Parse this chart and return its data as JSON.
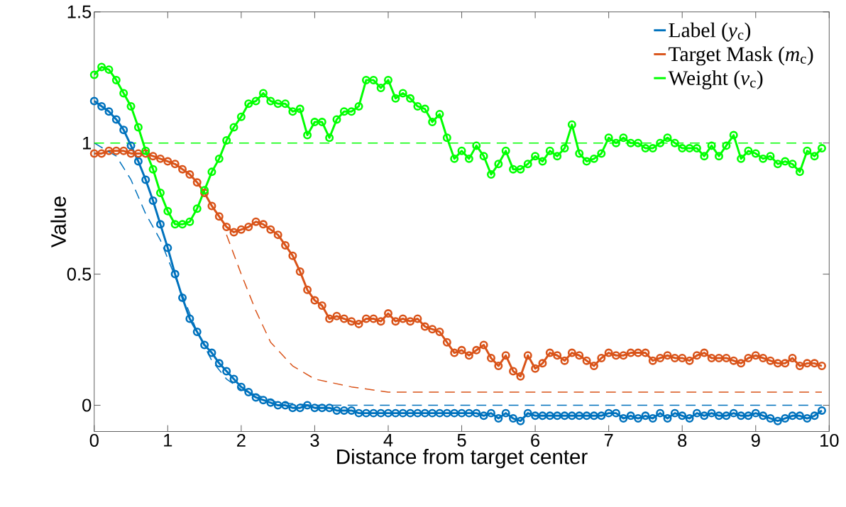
{
  "chart_data": {
    "type": "line",
    "xlabel": "Distance from target center",
    "ylabel": "Value",
    "x": [
      0,
      0.1,
      0.2,
      0.3,
      0.4,
      0.5,
      0.6,
      0.7,
      0.8,
      0.9,
      1,
      1.1,
      1.2,
      1.3,
      1.4,
      1.5,
      1.6,
      1.7,
      1.8,
      1.9,
      2,
      2.1,
      2.2,
      2.3,
      2.4,
      2.5,
      2.6,
      2.7,
      2.8,
      2.9,
      3,
      3.1,
      3.2,
      3.3,
      3.4,
      3.5,
      3.6,
      3.7,
      3.8,
      3.9,
      4,
      4.1,
      4.2,
      4.3,
      4.4,
      4.5,
      4.6,
      4.7,
      4.8,
      4.9,
      5,
      5.1,
      5.2,
      5.3,
      5.4,
      5.5,
      5.6,
      5.7,
      5.8,
      5.9,
      6,
      6.1,
      6.2,
      6.3,
      6.4,
      6.5,
      6.6,
      6.7,
      6.8,
      6.9,
      7,
      7.1,
      7.2,
      7.3,
      7.4,
      7.5,
      7.6,
      7.7,
      7.8,
      7.9,
      8,
      8.1,
      8.2,
      8.3,
      8.4,
      8.5,
      8.6,
      8.7,
      8.8,
      8.9,
      9,
      9.1,
      9.2,
      9.3,
      9.4,
      9.5,
      9.6,
      9.7,
      9.8,
      9.9
    ],
    "xlim": [
      0,
      10
    ],
    "ylim": [
      -0.1,
      1.5
    ],
    "xticks": [
      0,
      1,
      2,
      3,
      4,
      5,
      6,
      7,
      8,
      9,
      10
    ],
    "yticks": [
      0,
      0.5,
      1,
      1.5
    ],
    "legend": "top right",
    "marker": "circle",
    "line_style": "solid",
    "series": [
      {
        "name": "Label (*y*$_{c}$)",
        "color": "#0072bd",
        "values": [
          1.16,
          1.14,
          1.12,
          1.09,
          1.05,
          0.99,
          0.93,
          0.86,
          0.78,
          0.69,
          0.6,
          0.5,
          0.41,
          0.33,
          0.28,
          0.23,
          0.2,
          0.16,
          0.13,
          0.1,
          0.07,
          0.05,
          0.03,
          0.02,
          0.01,
          0.0,
          0.0,
          -0.01,
          -0.01,
          0.0,
          -0.01,
          -0.01,
          -0.01,
          -0.02,
          -0.02,
          -0.02,
          -0.03,
          -0.03,
          -0.03,
          -0.03,
          -0.03,
          -0.03,
          -0.03,
          -0.03,
          -0.03,
          -0.03,
          -0.03,
          -0.03,
          -0.03,
          -0.03,
          -0.03,
          -0.03,
          -0.03,
          -0.04,
          -0.03,
          -0.05,
          -0.03,
          -0.05,
          -0.06,
          -0.03,
          -0.04,
          -0.04,
          -0.04,
          -0.04,
          -0.04,
          -0.04,
          -0.04,
          -0.04,
          -0.04,
          -0.04,
          -0.03,
          -0.03,
          -0.05,
          -0.04,
          -0.05,
          -0.04,
          -0.05,
          -0.03,
          -0.05,
          -0.03,
          -0.04,
          -0.05,
          -0.03,
          -0.04,
          -0.03,
          -0.04,
          -0.04,
          -0.03,
          -0.04,
          -0.04,
          -0.03,
          -0.04,
          -0.05,
          -0.06,
          -0.05,
          -0.04,
          -0.04,
          -0.05,
          -0.04,
          -0.02
        ]
      },
      {
        "name": "Target Mask (*m*$_{c}$)",
        "color": "#d95319",
        "values": [
          0.96,
          0.96,
          0.97,
          0.97,
          0.97,
          0.96,
          0.96,
          0.96,
          0.95,
          0.94,
          0.93,
          0.92,
          0.9,
          0.88,
          0.85,
          0.81,
          0.76,
          0.72,
          0.68,
          0.66,
          0.67,
          0.68,
          0.7,
          0.69,
          0.67,
          0.65,
          0.61,
          0.57,
          0.51,
          0.44,
          0.4,
          0.38,
          0.33,
          0.34,
          0.33,
          0.32,
          0.31,
          0.33,
          0.33,
          0.32,
          0.35,
          0.32,
          0.33,
          0.32,
          0.33,
          0.3,
          0.29,
          0.28,
          0.24,
          0.2,
          0.21,
          0.19,
          0.21,
          0.23,
          0.18,
          0.15,
          0.19,
          0.13,
          0.11,
          0.19,
          0.14,
          0.16,
          0.2,
          0.19,
          0.17,
          0.2,
          0.19,
          0.17,
          0.15,
          0.18,
          0.2,
          0.19,
          0.19,
          0.2,
          0.2,
          0.2,
          0.17,
          0.18,
          0.19,
          0.18,
          0.18,
          0.17,
          0.19,
          0.2,
          0.18,
          0.18,
          0.18,
          0.17,
          0.16,
          0.18,
          0.19,
          0.18,
          0.17,
          0.16,
          0.16,
          0.18,
          0.15,
          0.16,
          0.16,
          0.15
        ]
      },
      {
        "name": "Weight (*v*$_{c}$)",
        "color": "#00ff00",
        "values": [
          1.26,
          1.29,
          1.28,
          1.24,
          1.19,
          1.14,
          1.06,
          0.97,
          0.9,
          0.81,
          0.74,
          0.69,
          0.69,
          0.7,
          0.75,
          0.82,
          0.89,
          0.94,
          1.01,
          1.06,
          1.1,
          1.15,
          1.16,
          1.19,
          1.16,
          1.15,
          1.15,
          1.12,
          1.13,
          1.03,
          1.08,
          1.08,
          1.02,
          1.09,
          1.12,
          1.12,
          1.14,
          1.24,
          1.24,
          1.21,
          1.24,
          1.17,
          1.19,
          1.17,
          1.14,
          1.13,
          1.08,
          1.11,
          1.02,
          0.94,
          0.97,
          0.94,
          0.99,
          0.95,
          0.88,
          0.92,
          0.97,
          0.9,
          0.9,
          0.92,
          0.95,
          0.93,
          0.97,
          0.95,
          0.98,
          1.07,
          0.96,
          0.93,
          0.94,
          0.96,
          1.02,
          1.0,
          1.02,
          1.0,
          1.0,
          0.98,
          0.98,
          1.0,
          1.02,
          1.0,
          0.98,
          0.98,
          0.98,
          0.95,
          0.99,
          0.95,
          0.99,
          1.03,
          0.94,
          0.97,
          0.96,
          0.94,
          0.95,
          0.92,
          0.93,
          0.92,
          0.89,
          0.97,
          0.95,
          0.98
        ]
      },
      {
        "type": "line",
        "color": "#0072bd",
        "line_style": "dashed",
        "marker": "none",
        "x": [
          0,
          0.3,
          0.5,
          0.7,
          0.9,
          1,
          1.2,
          1.4,
          1.6,
          1.8,
          2,
          2.5,
          3,
          9.9
        ],
        "values": [
          1.0,
          0.95,
          0.86,
          0.73,
          0.63,
          0.56,
          0.42,
          0.28,
          0.17,
          0.1,
          0.06,
          0.01,
          0,
          0
        ]
      },
      {
        "type": "line",
        "color": "#d95319",
        "line_style": "dashed",
        "marker": "none",
        "x": [
          1.8,
          2,
          2.2,
          2.4,
          2.7,
          3,
          3.5,
          4,
          9.9
        ],
        "values": [
          0.65,
          0.5,
          0.36,
          0.24,
          0.15,
          0.1,
          0.07,
          0.05,
          0.05
        ]
      },
      {
        "type": "line",
        "color": "#00ff00",
        "line_style": "dashed",
        "marker": "none",
        "x": [
          0,
          9.9
        ],
        "values": [
          1,
          1
        ]
      }
    ]
  }
}
